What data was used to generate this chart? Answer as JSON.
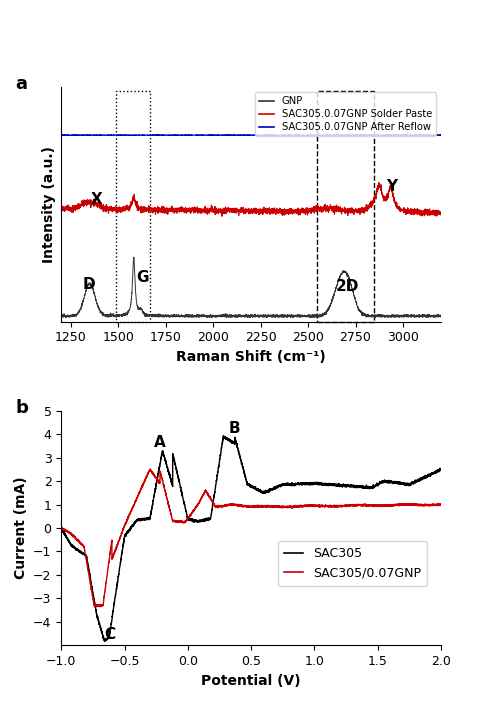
{
  "panel_a": {
    "xlabel": "Raman Shift (cm⁻¹)",
    "ylabel": "Intensity (a.u.)",
    "xlim": [
      1200,
      3200
    ],
    "colors": {
      "gnp": "#333333",
      "paste": "#cc0000",
      "reflow": "#0000cc"
    },
    "legend_labels": [
      "GNP",
      "SAC305.0.07GNP Solder Paste",
      "SAC305.0.07GNP After Reflow"
    ]
  },
  "panel_b": {
    "xlabel": "Potential (V)",
    "ylabel": "Current (mA)",
    "xlim": [
      -1.0,
      2.0
    ],
    "ylim": [
      -5,
      5
    ],
    "xticks": [
      -1.0,
      -0.5,
      0.0,
      0.5,
      1.0,
      1.5,
      2.0
    ],
    "yticks": [
      -4,
      -3,
      -2,
      -1,
      0,
      1,
      2,
      3,
      4,
      5
    ],
    "legend_labels": [
      "SAC305",
      "SAC305/0.07GNP"
    ],
    "colors": {
      "sac305": "#000000",
      "sac305gnp": "#cc0000"
    }
  }
}
